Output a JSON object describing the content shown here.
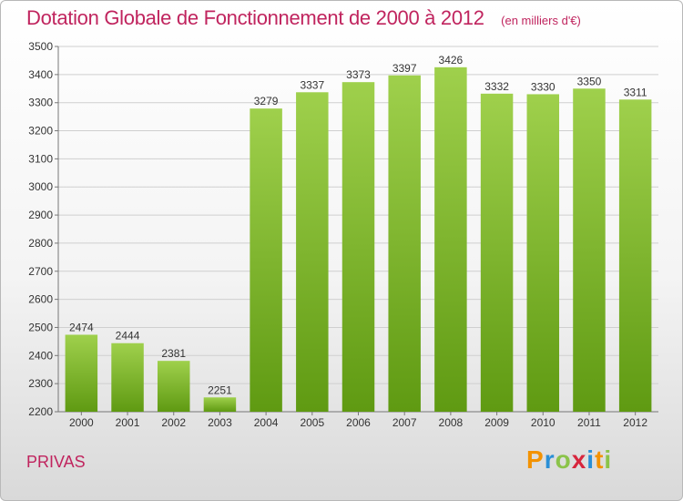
{
  "header": {
    "title": "Dotation Globale de Fonctionnement de 2000 à 2012",
    "unit_note": "(en milliers d'€)"
  },
  "footer": {
    "city": "PRIVAS",
    "logo_letters": [
      "P",
      "r",
      "o",
      "x",
      "i",
      "t",
      "i"
    ],
    "logo_colors": [
      "#f39200",
      "#2a8fd6",
      "#8bc34a",
      "#d7263d",
      "#2a8fd6",
      "#f39200",
      "#8bc34a"
    ]
  },
  "chart_data": {
    "type": "bar",
    "title": "Dotation Globale de Fonctionnement de 2000 à 2012",
    "categories": [
      "2000",
      "2001",
      "2002",
      "2003",
      "2004",
      "2005",
      "2006",
      "2007",
      "2008",
      "2009",
      "2010",
      "2011",
      "2012"
    ],
    "values": [
      2474,
      2444,
      2381,
      2251,
      3279,
      3337,
      3373,
      3397,
      3426,
      3332,
      3330,
      3350,
      3311
    ],
    "ylim": [
      2200,
      3500
    ],
    "yticks": [
      2200,
      2300,
      2400,
      2500,
      2600,
      2700,
      2800,
      2900,
      3000,
      3100,
      3200,
      3300,
      3400,
      3500
    ],
    "grid": true,
    "bar_color_top": "#9fd04c",
    "bar_color_bottom": "#5f9a12",
    "grid_color": "#cfcfcf"
  }
}
